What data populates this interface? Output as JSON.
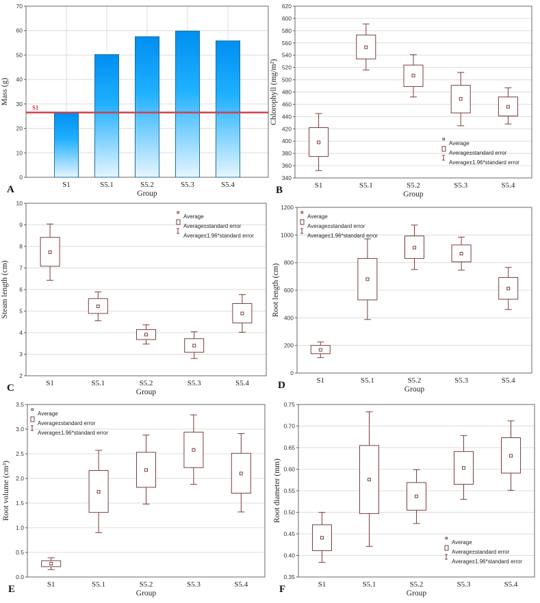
{
  "colors": {
    "box": "#7a3b3b",
    "grid": "#dcdcdc",
    "bar_top": "#008ff0",
    "bar_mid": "#1fb0ff",
    "bar_bottom": "#e6f5ff",
    "ref_line": "#d0404a"
  },
  "legend_labels": [
    "Average",
    "Average±standard error",
    "Average±1.96*standard error"
  ],
  "chart_data": [
    {
      "type": "bar",
      "panel": "A",
      "title": "",
      "xlabel": "Group",
      "ylabel": "Mass (g)",
      "categories": [
        "S1",
        "S5.1",
        "S5.2",
        "S5.3",
        "S5.4"
      ],
      "values": [
        26.3,
        50.2,
        57.5,
        59.8,
        55.8
      ],
      "reference_line": {
        "label": "S1",
        "value": 26.5
      },
      "ylim": [
        0,
        70
      ],
      "yticks": [
        "0",
        "10",
        "20",
        "30",
        "40",
        "50",
        "60",
        "70"
      ],
      "grid": true
    },
    {
      "type": "box",
      "panel": "B",
      "xlabel": "Group",
      "ylabel": "Chlorophyll (mg/m²)",
      "categories": [
        "S1",
        "S5.1",
        "S5.2",
        "S5.3",
        "S5.4"
      ],
      "series": [
        {
          "name": "Average",
          "values": [
            398,
            553,
            507,
            469,
            456
          ]
        },
        {
          "name": "Average-standard error",
          "values": [
            375,
            534,
            489,
            446,
            441
          ]
        },
        {
          "name": "Average+standard error",
          "values": [
            422,
            573,
            524,
            491,
            472
          ]
        },
        {
          "name": "Average-1.96*standard error",
          "values": [
            352,
            516,
            472,
            425,
            428
          ]
        },
        {
          "name": "Average+1.96*standard error",
          "values": [
            445,
            591,
            541,
            512,
            487
          ]
        }
      ],
      "ylim": [
        340,
        620
      ],
      "yticks": [
        "340",
        "360",
        "380",
        "400",
        "420",
        "440",
        "460",
        "480",
        "500",
        "520",
        "540",
        "560",
        "580",
        "600",
        "620"
      ],
      "grid": true,
      "legend": "bottom-right"
    },
    {
      "type": "box",
      "panel": "C",
      "xlabel": "Group",
      "ylabel": "Steam length (cm)",
      "categories": [
        "S1",
        "S5.1",
        "S5.2",
        "S5.3",
        "S5.4"
      ],
      "series": [
        {
          "name": "Average",
          "values": [
            7.73,
            5.22,
            3.91,
            3.4,
            4.89
          ]
        },
        {
          "name": "Average-standard error",
          "values": [
            7.08,
            4.89,
            3.68,
            3.09,
            4.45
          ]
        },
        {
          "name": "Average+standard error",
          "values": [
            8.42,
            5.58,
            4.14,
            3.72,
            5.35
          ]
        },
        {
          "name": "Average-1.96*standard error",
          "values": [
            6.43,
            4.55,
            3.47,
            2.8,
            4.02
          ]
        },
        {
          "name": "Average+1.96*standard error",
          "values": [
            9.04,
            5.89,
            4.36,
            4.04,
            5.76
          ]
        }
      ],
      "ylim": [
        2,
        10
      ],
      "yticks": [
        "2",
        "3",
        "4",
        "5",
        "6",
        "7",
        "8",
        "9",
        "10"
      ],
      "grid": true,
      "legend": "top-right"
    },
    {
      "type": "box",
      "panel": "D",
      "xlabel": "Group",
      "ylabel": "Root length (cm)",
      "categories": [
        "S1",
        "S5.1",
        "S5.2",
        "S5.3",
        "S5.4"
      ],
      "series": [
        {
          "name": "Average",
          "values": [
            168,
            680,
            908,
            865,
            612
          ]
        },
        {
          "name": "Average-standard error",
          "values": [
            140,
            530,
            830,
            805,
            535
          ]
        },
        {
          "name": "Average+standard error",
          "values": [
            200,
            830,
            993,
            928,
            692
          ]
        },
        {
          "name": "Average-1.96*standard error",
          "values": [
            112,
            388,
            750,
            745,
            460
          ]
        },
        {
          "name": "Average+1.96*standard error",
          "values": [
            225,
            972,
            1072,
            985,
            765
          ]
        }
      ],
      "ylim": [
        0,
        1200
      ],
      "yticks": [
        "0",
        "200",
        "400",
        "600",
        "800",
        "1000",
        "1200"
      ],
      "grid": true,
      "legend": "top-left"
    },
    {
      "type": "box",
      "panel": "E",
      "xlabel": "Group",
      "ylabel": "Root volume (cm³)",
      "categories": [
        "S1",
        "S5.1",
        "S5.2",
        "S5.3",
        "S5.4"
      ],
      "series": [
        {
          "name": "Average",
          "values": [
            0.27,
            1.73,
            2.17,
            2.58,
            2.1
          ]
        },
        {
          "name": "Average-standard error",
          "values": [
            0.21,
            1.31,
            1.82,
            2.22,
            1.7
          ]
        },
        {
          "name": "Average+standard error",
          "values": [
            0.33,
            2.16,
            2.53,
            2.94,
            2.51
          ]
        },
        {
          "name": "Average-1.96*standard error",
          "values": [
            0.15,
            0.9,
            1.48,
            1.88,
            1.32
          ]
        },
        {
          "name": "Average+1.96*standard error",
          "values": [
            0.39,
            2.57,
            2.88,
            3.29,
            2.91
          ]
        }
      ],
      "ylim": [
        0,
        3.5
      ],
      "yticks": [
        "0.0",
        "0.5",
        "1.0",
        "1.5",
        "2.0",
        "2.5",
        "3.0",
        "3.5"
      ],
      "grid": true,
      "legend": "top-left"
    },
    {
      "type": "box",
      "panel": "F",
      "xlabel": "Group",
      "ylabel": "Root diameter (mm)",
      "categories": [
        "S1",
        "S5.1",
        "S5.2",
        "S5.3",
        "S5.4"
      ],
      "series": [
        {
          "name": "Average",
          "values": [
            0.441,
            0.576,
            0.537,
            0.603,
            0.631
          ]
        },
        {
          "name": "Average-standard error",
          "values": [
            0.411,
            0.497,
            0.505,
            0.565,
            0.591
          ]
        },
        {
          "name": "Average+standard error",
          "values": [
            0.471,
            0.655,
            0.569,
            0.641,
            0.673
          ]
        },
        {
          "name": "Average-1.96*standard error",
          "values": [
            0.384,
            0.421,
            0.474,
            0.53,
            0.551
          ]
        },
        {
          "name": "Average+1.96*standard error",
          "values": [
            0.5,
            0.733,
            0.599,
            0.678,
            0.712
          ]
        }
      ],
      "ylim": [
        0.35,
        0.75
      ],
      "yticks": [
        "0.35",
        "0.40",
        "0.45",
        "0.50",
        "0.55",
        "0.60",
        "0.65",
        "0.70",
        "0.75"
      ],
      "grid": true,
      "legend": "bottom-right"
    }
  ]
}
